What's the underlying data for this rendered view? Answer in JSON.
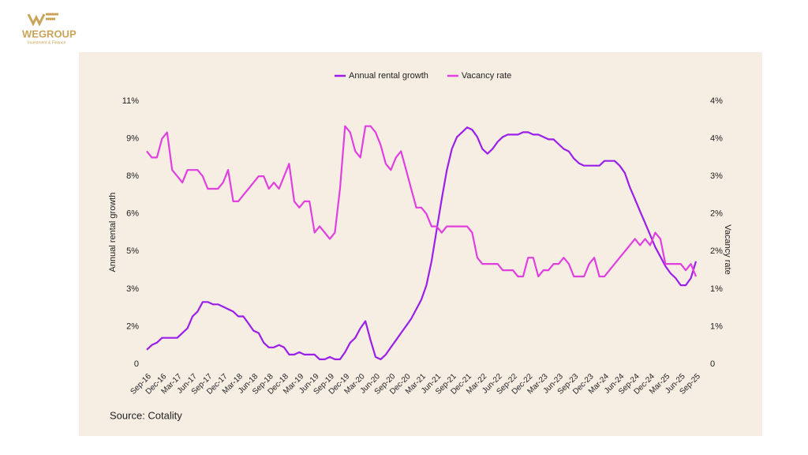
{
  "header": {
    "brand": "WEGROUP",
    "tagline": "Investment & Finance"
  },
  "chart_data": {
    "type": "line",
    "source": "Source: Cotality",
    "y_label": "Annual rental growth",
    "y2_label": "Vacancy rate",
    "categories": [
      "Sep-16",
      null,
      null,
      "Dec-16",
      null,
      null,
      "Mar-17",
      null,
      null,
      "Jun-17",
      null,
      null,
      "Sep-17",
      null,
      null,
      "Dec-17",
      null,
      null,
      "Mar-18",
      null,
      null,
      "Jun-18",
      null,
      null,
      "Sep-18",
      null,
      null,
      "Dec-18",
      null,
      null,
      "Mar-19",
      null,
      null,
      "Jun-19",
      null,
      null,
      "Sep-19",
      null,
      null,
      "Dec-19",
      null,
      null,
      "Mar-20",
      null,
      null,
      "Jun-20",
      null,
      null,
      "Sep-20",
      null,
      null,
      "Dec-20",
      null,
      null,
      "Mar-21",
      null,
      null,
      "Jun-21",
      null,
      null,
      "Sep-21",
      null,
      null,
      "Dec-21",
      null,
      null,
      "Mar-22",
      null,
      null,
      "Jun-22",
      null,
      null,
      "Sep-22",
      null,
      null,
      "Dec-22",
      null,
      null,
      "Mar-23",
      null,
      null,
      "Jun-23",
      null,
      null,
      "Sep-23",
      null,
      null,
      "Dec-23",
      null,
      null,
      "Mar-24",
      null,
      null,
      "Jun-24",
      null,
      null,
      "Sep-24",
      null,
      null,
      "Dec-24",
      null,
      null,
      "Mar-25",
      null,
      null,
      "Jun-25",
      null,
      null,
      "Sep-25"
    ],
    "series": [
      {
        "name": "Annual rental growth",
        "color": "#9b1fe8",
        "values": [
          0.6,
          0.8,
          0.9,
          1.1,
          1.1,
          1.1,
          1.1,
          1.3,
          1.5,
          2.0,
          2.2,
          2.6,
          2.6,
          2.5,
          2.5,
          2.4,
          2.3,
          2.2,
          2.0,
          2.0,
          1.7,
          1.4,
          1.3,
          0.9,
          0.7,
          0.7,
          0.8,
          0.7,
          0.4,
          0.4,
          0.5,
          0.4,
          0.4,
          0.4,
          0.2,
          0.2,
          0.3,
          0.2,
          0.2,
          0.5,
          0.9,
          1.1,
          1.5,
          1.8,
          1.0,
          0.3,
          0.2,
          0.4,
          0.7,
          1.0,
          1.3,
          1.6,
          1.9,
          2.3,
          2.7,
          3.3,
          4.3,
          5.6,
          6.9,
          8.1,
          9.0,
          9.5,
          9.7,
          9.9,
          9.8,
          9.5,
          9.0,
          8.8,
          9.0,
          9.3,
          9.5,
          9.6,
          9.6,
          9.6,
          9.7,
          9.7,
          9.6,
          9.6,
          9.5,
          9.4,
          9.4,
          9.2,
          9.0,
          8.9,
          8.6,
          8.4,
          8.3,
          8.3,
          8.3,
          8.3,
          8.5,
          8.5,
          8.5,
          8.3,
          8.0,
          7.4,
          6.9,
          6.4,
          5.9,
          5.4,
          4.9,
          4.5,
          4.1,
          3.8,
          3.6,
          3.3,
          3.3,
          3.6,
          4.3
        ]
      },
      {
        "name": "Vacancy rate",
        "color": "#e23fe0",
        "axis": "y2",
        "values": [
          3.4,
          3.3,
          3.3,
          3.6,
          3.7,
          3.1,
          3.0,
          2.9,
          3.1,
          3.1,
          3.1,
          3.0,
          2.8,
          2.8,
          2.8,
          2.9,
          3.1,
          2.6,
          2.6,
          2.7,
          2.8,
          2.9,
          3.0,
          3.0,
          2.8,
          2.9,
          2.8,
          3.0,
          3.2,
          2.6,
          2.5,
          2.6,
          2.6,
          2.1,
          2.2,
          2.1,
          2.0,
          2.1,
          2.8,
          3.8,
          3.7,
          3.4,
          3.3,
          3.8,
          3.8,
          3.7,
          3.5,
          3.2,
          3.1,
          3.3,
          3.4,
          3.1,
          2.8,
          2.5,
          2.5,
          2.4,
          2.2,
          2.2,
          2.1,
          2.2,
          2.2,
          2.2,
          2.2,
          2.2,
          2.1,
          1.7,
          1.6,
          1.6,
          1.6,
          1.6,
          1.5,
          1.5,
          1.5,
          1.4,
          1.4,
          1.7,
          1.7,
          1.4,
          1.5,
          1.5,
          1.6,
          1.6,
          1.7,
          1.6,
          1.4,
          1.4,
          1.4,
          1.6,
          1.7,
          1.4,
          1.4,
          1.5,
          1.6,
          1.7,
          1.8,
          1.9,
          2.0,
          1.9,
          2.0,
          1.9,
          2.1,
          2.0,
          1.6,
          1.6,
          1.6,
          1.6,
          1.5,
          1.6,
          1.4
        ]
      }
    ],
    "ylim": [
      0,
      11
    ],
    "yticks": [
      0,
      {
        "value": 1.5714,
        "label": "2%"
      },
      {
        "value": 3.1429,
        "label": "3%"
      },
      {
        "value": 4.7143,
        "label": "5%"
      },
      {
        "value": 6.2857,
        "label": "6%"
      },
      {
        "value": 7.8571,
        "label": "8%"
      },
      {
        "value": 9.4286,
        "label": "9%"
      },
      {
        "value": 11,
        "label": "11%"
      }
    ],
    "y2lim": [
      0,
      4.2
    ],
    "y2ticks": [
      0,
      {
        "value": 0.6,
        "label": "1%"
      },
      {
        "value": 1.2,
        "label": "1%"
      },
      {
        "value": 1.8,
        "label": "2%"
      },
      {
        "value": 2.4,
        "label": "2%"
      },
      {
        "value": 3.0,
        "label": "3%"
      },
      {
        "value": 3.6,
        "label": "4%"
      },
      {
        "value": 4.2,
        "label": "4%"
      }
    ],
    "legend": "top"
  }
}
